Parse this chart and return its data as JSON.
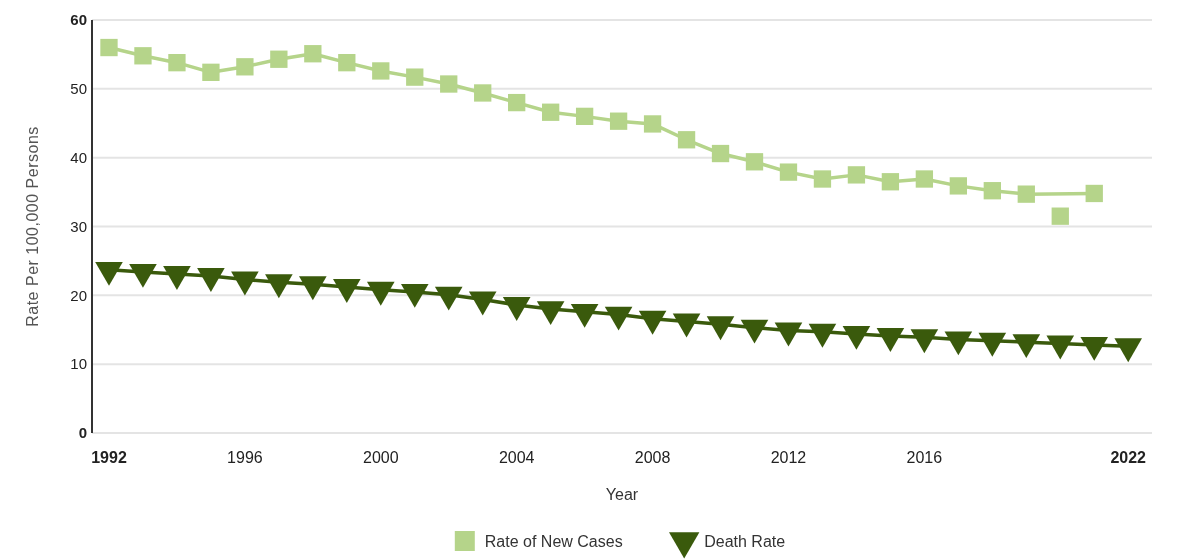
{
  "chart_data": {
    "type": "line",
    "xlabel": "Year",
    "ylabel": "Rate Per 100,000 Persons",
    "xlim": [
      1991.5,
      2022.7
    ],
    "ylim": [
      0,
      60
    ],
    "xticks": [
      1992,
      1996,
      2000,
      2004,
      2008,
      2012,
      2016,
      2022
    ],
    "yticks": [
      0,
      10,
      20,
      30,
      40,
      50,
      60
    ],
    "grid": "y",
    "legend": "bottom",
    "series": [
      {
        "name": "Rate of New Cases",
        "color": "#b5d48a",
        "marker": "square",
        "x": [
          1992,
          1993,
          1994,
          1995,
          1996,
          1997,
          1998,
          1999,
          2000,
          2001,
          2002,
          2003,
          2004,
          2005,
          2006,
          2007,
          2008,
          2009,
          2010,
          2011,
          2012,
          2013,
          2014,
          2015,
          2016,
          2017,
          2018,
          2019,
          2021
        ],
        "values": [
          56.0,
          54.8,
          53.8,
          52.4,
          53.2,
          54.3,
          55.1,
          53.8,
          52.6,
          51.7,
          50.7,
          49.4,
          48.0,
          46.6,
          46.0,
          45.3,
          44.9,
          42.6,
          40.6,
          39.4,
          37.9,
          36.9,
          37.5,
          36.5,
          36.9,
          35.9,
          35.2,
          34.7,
          34.8
        ]
      },
      {
        "type": "scatter",
        "color": "#b5d48a",
        "marker": "square",
        "x": [
          2020
        ],
        "values": [
          31.5
        ]
      },
      {
        "name": "Death Rate",
        "color": "#3a5a0c",
        "marker": "triangle",
        "x": [
          1992,
          1993,
          1994,
          1995,
          1996,
          1997,
          1998,
          1999,
          2000,
          2001,
          2002,
          2003,
          2004,
          2005,
          2006,
          2007,
          2008,
          2009,
          2010,
          2011,
          2012,
          2013,
          2014,
          2015,
          2016,
          2017,
          2018,
          2019,
          2020,
          2021,
          2022
        ],
        "values": [
          23.7,
          23.4,
          23.1,
          22.8,
          22.3,
          21.9,
          21.6,
          21.2,
          20.8,
          20.5,
          20.1,
          19.4,
          18.6,
          18.0,
          17.6,
          17.2,
          16.6,
          16.2,
          15.8,
          15.3,
          14.9,
          14.7,
          14.4,
          14.1,
          13.9,
          13.6,
          13.4,
          13.2,
          13.0,
          12.8,
          12.6
        ]
      }
    ]
  }
}
